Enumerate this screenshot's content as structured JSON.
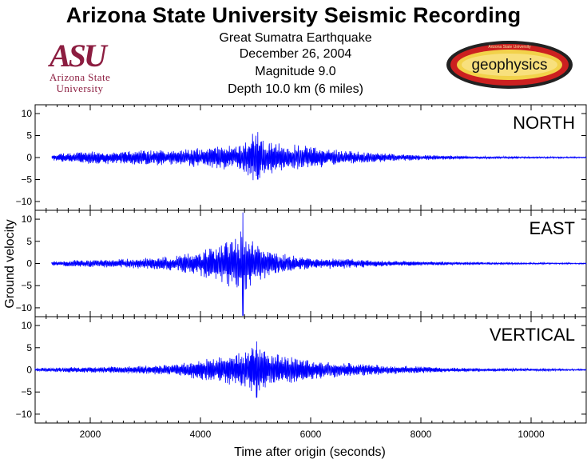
{
  "header": {
    "title": "Arizona State University Seismic Recording",
    "subtitle_lines": [
      "Great Sumatra Earthquake",
      "December 26, 2004",
      "Magnitude 9.0",
      "Depth 10.0 km (6 miles)"
    ]
  },
  "logos": {
    "asu_mark": "ASU",
    "asu_lines": [
      "Arizona State",
      "University"
    ],
    "geophysics_label": "geophysics",
    "geophysics_arc_text": "Arizona State University"
  },
  "colors": {
    "trace": "#0000ff",
    "asu_maroon": "#8c1d40",
    "asu_gold": "#e8a33d",
    "geo_red": "#cc2020",
    "geo_yellow": "#f2d24a"
  },
  "chart_data": {
    "type": "line",
    "title": "",
    "xlabel": "Time after origin (seconds)",
    "ylabel": "Ground velocity",
    "xlim": [
      1000,
      11000
    ],
    "ylim": [
      -12,
      12
    ],
    "x_ticks": [
      2000,
      4000,
      6000,
      8000,
      10000
    ],
    "x_minor_step": 200,
    "y_ticks": [
      10,
      5,
      0,
      -5,
      -10
    ],
    "y_tick_labels": [
      "10",
      "5",
      "0",
      "−5",
      "−10"
    ],
    "grid": false,
    "series": [
      {
        "name": "NORTH",
        "start": 1300,
        "envelope": {
          "t": [
            1300,
            1500,
            2000,
            2500,
            3000,
            3500,
            4000,
            4300,
            4600,
            4800,
            4950,
            5050,
            5200,
            5500,
            6000,
            6500,
            7000,
            7500,
            8000,
            8500,
            9000,
            10000,
            11000
          ],
          "a": [
            0.6,
            1.1,
            1.6,
            1.5,
            1.8,
            1.7,
            2.4,
            2.8,
            3.0,
            3.4,
            5.8,
            5.4,
            4.0,
            3.2,
            2.6,
            1.8,
            1.2,
            0.9,
            0.6,
            0.5,
            0.3,
            0.2,
            0.15
          ]
        },
        "peak": {
          "t": 5040,
          "max": 5.8,
          "min": -5.0
        }
      },
      {
        "name": "EAST",
        "start": 1300,
        "envelope": {
          "t": [
            1300,
            1500,
            2000,
            2500,
            3000,
            3500,
            4000,
            4300,
            4500,
            4700,
            4760,
            4850,
            5000,
            5300,
            5600,
            6000,
            6500,
            7000,
            7500,
            8000,
            9000,
            10000,
            11000
          ],
          "a": [
            0.4,
            0.7,
            0.9,
            1.0,
            1.3,
            1.7,
            3.0,
            4.0,
            5.2,
            6.5,
            8.0,
            6.0,
            4.8,
            2.8,
            2.0,
            1.3,
            1.2,
            0.9,
            0.6,
            0.5,
            0.3,
            0.2,
            0.15
          ]
        },
        "peak": {
          "t": 4770,
          "max": 11.5,
          "min": -12.0
        }
      },
      {
        "name": "VERTICAL",
        "start": 1000,
        "envelope": {
          "t": [
            1000,
            1500,
            2000,
            2500,
            3000,
            3500,
            4000,
            4300,
            4600,
            4800,
            5000,
            5200,
            5500,
            6000,
            6500,
            7000,
            7500,
            8000,
            8500,
            9000,
            10000,
            11000
          ],
          "a": [
            0.4,
            0.6,
            0.7,
            0.8,
            1.0,
            1.3,
            2.4,
            3.0,
            3.6,
            4.2,
            6.4,
            4.6,
            3.4,
            2.4,
            1.8,
            1.3,
            1.0,
            0.8,
            0.5,
            0.4,
            0.3,
            0.2
          ]
        },
        "peak": {
          "t": 5020,
          "max": 6.4,
          "min": -6.3
        }
      }
    ]
  }
}
